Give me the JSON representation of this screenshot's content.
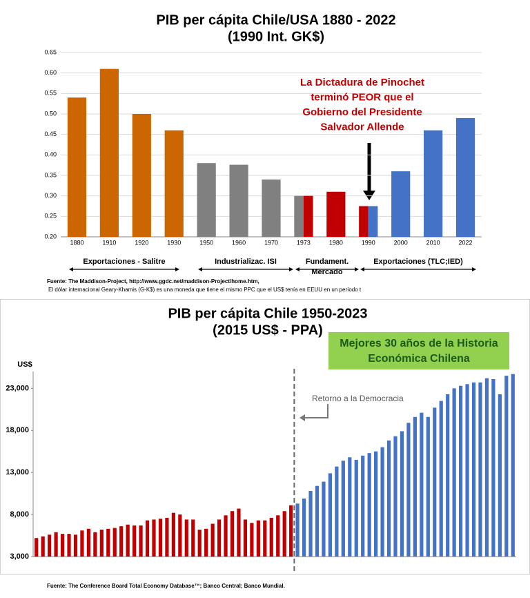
{
  "chart_data": [
    {
      "type": "bar",
      "title": "PIB per cápita Chile/USA 1880 - 2022",
      "subtitle": "(1990 Int. GK$)",
      "categories": [
        "1880",
        "1910",
        "1920",
        "1930",
        "1950",
        "1960",
        "1970",
        "1973",
        "1980",
        "1990",
        "2000",
        "2010",
        "2022"
      ],
      "values": [
        0.54,
        0.61,
        0.5,
        0.46,
        0.38,
        0.376,
        0.34,
        0.3,
        0.31,
        0.275,
        0.36,
        0.46,
        0.49
      ],
      "colors": [
        [
          "#cc6600"
        ],
        [
          "#cc6600"
        ],
        [
          "#cc6600"
        ],
        [
          "#cc6600"
        ],
        [
          "#808080"
        ],
        [
          "#808080"
        ],
        [
          "#808080"
        ],
        [
          "#808080",
          "#c00000"
        ],
        [
          "#c00000"
        ],
        [
          "#c00000",
          "#4472c4"
        ],
        [
          "#4472c4"
        ],
        [
          "#4472c4"
        ],
        [
          "#4472c4"
        ]
      ],
      "ylim": [
        0.2,
        0.65
      ],
      "yticks": [
        {
          "value": 0.2,
          "label": "0.20"
        },
        0.25,
        {
          "value": 0.3,
          "label": "0.30"
        },
        0.35,
        {
          "value": 0.4,
          "label": "0.40"
        },
        0.45,
        {
          "value": 0.5,
          "label": "0.50"
        },
        0.55,
        {
          "value": 0.6,
          "label": "0.60"
        },
        0.65
      ],
      "grid": true,
      "annotation": [
        "La Dictadura de Pinochet",
        "terminó PEOR que el",
        "Gobierno del Presidente",
        "Salvador Allende"
      ],
      "periods": [
        [
          "Exportaciones - Salitre"
        ],
        [
          "Industrializac. ISI"
        ],
        [
          "Fundament.",
          "Mercado"
        ],
        [
          "Exportaciones (TLC;IED)"
        ]
      ],
      "sources": [
        "Fuente: The Maddison-Project, http://www.ggdc.net/maddison-Project/home.htm,",
        "El dólar internacional Geary-Khamis (G-K$) es una moneda que tiene el mismo PPC que el US$ tenía en EEUU en un período t"
      ]
    },
    {
      "type": "bar",
      "title": "PIB per cápita Chile 1950-2023",
      "subtitle": "(2015 US$ - PPA)",
      "ylabel": "US$",
      "values": [
        5200,
        5400,
        5600,
        5900,
        5700,
        5700,
        5600,
        6100,
        6300,
        5900,
        6200,
        6300,
        6400,
        6600,
        6800,
        6700,
        6700,
        7300,
        7400,
        7500,
        7600,
        8200,
        8000,
        7400,
        7400,
        6200,
        6300,
        6900,
        7400,
        7900,
        8400,
        8700,
        7400,
        7000,
        7300,
        7300,
        7600,
        7900,
        8400,
        9100,
        9300,
        9900,
        10800,
        11400,
        11900,
        12900,
        13700,
        14400,
        14800,
        14500,
        15000,
        15300,
        15500,
        16000,
        16800,
        17300,
        17900,
        18900,
        19600,
        20100,
        19600,
        20700,
        21500,
        22300,
        23000,
        23300,
        23500,
        23700,
        23700,
        24200,
        24100,
        22300,
        24500,
        24700
      ],
      "colors": [
        "#c00000",
        "#c00000",
        "#c00000",
        "#c00000",
        "#c00000",
        "#c00000",
        "#c00000",
        "#c00000",
        "#c00000",
        "#c00000",
        "#c00000",
        "#c00000",
        "#c00000",
        "#c00000",
        "#c00000",
        "#c00000",
        "#c00000",
        "#c00000",
        "#c00000",
        "#c00000",
        "#c00000",
        "#c00000",
        "#c00000",
        "#c00000",
        "#c00000",
        "#c00000",
        "#c00000",
        "#c00000",
        "#c00000",
        "#c00000",
        "#c00000",
        "#c00000",
        "#c00000",
        "#c00000",
        "#c00000",
        "#c00000",
        "#c00000",
        "#c00000",
        "#c00000",
        "#c00000",
        "#4472c4",
        "#4472c4",
        "#4472c4",
        "#4472c4",
        "#4472c4",
        "#4472c4",
        "#4472c4",
        "#4472c4",
        "#4472c4",
        "#4472c4",
        "#4472c4",
        "#4472c4",
        "#4472c4",
        "#4472c4",
        "#4472c4",
        "#4472c4",
        "#4472c4",
        "#4472c4",
        "#4472c4",
        "#4472c4",
        "#4472c4",
        "#4472c4",
        "#4472c4",
        "#4472c4",
        "#4472c4",
        "#4472c4",
        "#4472c4",
        "#4472c4",
        "#4472c4",
        "#4472c4",
        "#4472c4",
        "#4472c4",
        "#4472c4",
        "#4472c4"
      ],
      "ylim": [
        3000,
        25000
      ],
      "yticks": [
        {
          "value": 3000,
          "label": "3,000"
        },
        {
          "value": 8000,
          "label": "8,000"
        },
        {
          "value": 13000,
          "label": "13,000"
        },
        {
          "value": 18000,
          "label": "18,000"
        },
        {
          "value": 23000,
          "label": "23,000"
        }
      ],
      "grid": false,
      "highlight": [
        "Mejores 30 años de la Historia",
        "Económica Chilena"
      ],
      "annotation": "Retorno a la Democracia",
      "source": "Fuente: The Conference Board Total Economy Database™; Banco Central; Banco Mundial."
    }
  ]
}
